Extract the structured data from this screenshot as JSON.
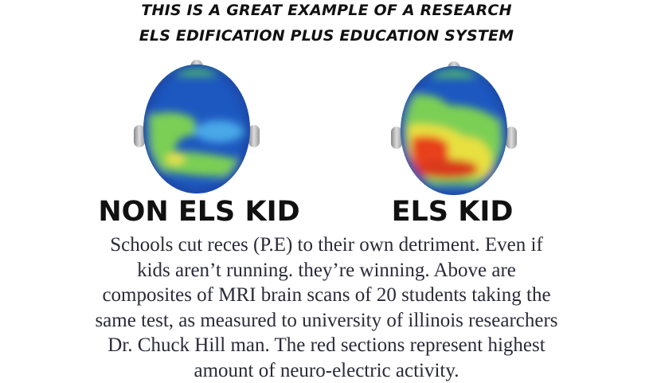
{
  "header": {
    "line1": "THIS IS A GREAT EXAMPLE OF  A  RESEARCH",
    "line2": "ELS EDIFICATION PLUS EDUCATION SYSTEM"
  },
  "scans": [
    {
      "label": "NON ELS KID",
      "activity": "low"
    },
    {
      "label": "ELS KID",
      "activity": "high"
    }
  ],
  "caption": {
    "lines": [
      "Schools cut reces (P.E) to their own detriment. Even if",
      "kids aren’t running. they’re winning. Above are",
      "composites of MRI brain scans of 20 students taking the",
      "same test, as measured to university of illinois researchers",
      "Dr. Chuck Hill man. The red sections represent highest",
      "amount of neuro-electric activity."
    ]
  },
  "colors": {
    "low": "#1f5fc8",
    "mid": "#7fd04a",
    "high": "#e8401c"
  }
}
